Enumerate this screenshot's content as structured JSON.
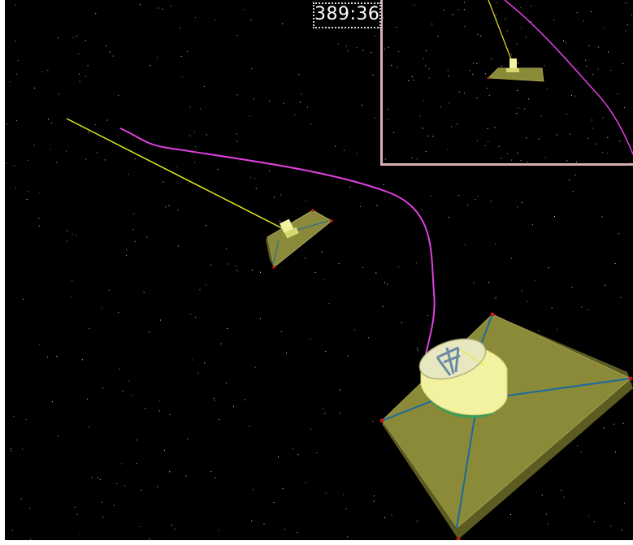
{
  "hud": {
    "elapsed_time": "389:36"
  },
  "colors": {
    "space_background": "#000000",
    "trajectory": "#e040e0",
    "tether": "#e8e820",
    "platform": "#8a8a3a",
    "module_body": "#f2f2a0",
    "strut": "#1a6aa0",
    "corner_marker": "#c01818",
    "inset_border": "#d8aeb0"
  },
  "icons": {
    "small_spacecraft": "spacecraft-shape",
    "large_spacecraft": "spacecraft-shape"
  }
}
